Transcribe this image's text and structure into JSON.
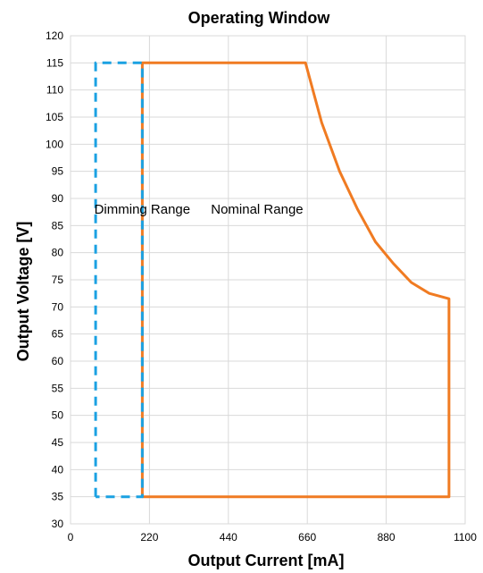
{
  "chart_data": {
    "type": "line",
    "title": "Operating Window",
    "xlabel": "Output Current [mA]",
    "ylabel": "Output Voltage [V]",
    "xlim": [
      0,
      1100
    ],
    "ylim": [
      30,
      120
    ],
    "xticks": [
      0,
      220,
      440,
      660,
      880,
      1100
    ],
    "yticks": [
      30,
      35,
      40,
      45,
      50,
      55,
      60,
      65,
      70,
      75,
      80,
      85,
      90,
      95,
      100,
      105,
      110,
      115,
      120
    ],
    "grid": true,
    "series": [
      {
        "label": "Dimming Range",
        "color": "#1ba1e2",
        "dashed": true,
        "points": [
          [
            70,
            35
          ],
          [
            70,
            115
          ],
          [
            200,
            115
          ],
          [
            200,
            35
          ],
          [
            70,
            35
          ]
        ]
      },
      {
        "label": "Nominal Range",
        "color": "#f07b22",
        "dashed": false,
        "points": [
          [
            200,
            35
          ],
          [
            200,
            115
          ],
          [
            655,
            115
          ],
          [
            700,
            104
          ],
          [
            750,
            95
          ],
          [
            800,
            88
          ],
          [
            850,
            82
          ],
          [
            900,
            78
          ],
          [
            950,
            74.5
          ],
          [
            1000,
            72.5
          ],
          [
            1055,
            71.5
          ],
          [
            1055,
            35
          ],
          [
            200,
            35
          ]
        ]
      }
    ],
    "annotations": [
      {
        "text": "Dimming Range",
        "x": 200,
        "y": 88
      },
      {
        "text": "Nominal Range",
        "x": 520,
        "y": 88
      }
    ]
  }
}
